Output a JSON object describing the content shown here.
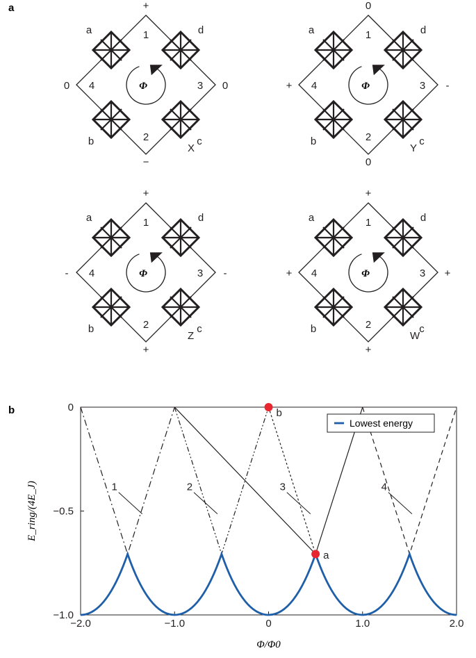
{
  "panel_a": {
    "label": "a",
    "flux_symbol": "Φ",
    "diagrams": [
      {
        "name": "X",
        "top": "+",
        "bottom": "−",
        "left": "0",
        "right": "0",
        "junctions": [
          "a",
          "b",
          "c",
          "d"
        ],
        "islands": [
          "1",
          "2",
          "3",
          "4"
        ]
      },
      {
        "name": "Y",
        "top": "0",
        "bottom": "0",
        "left": "+",
        "right": "-",
        "junctions": [
          "a",
          "b",
          "c",
          "d"
        ],
        "islands": [
          "1",
          "2",
          "3",
          "4"
        ]
      },
      {
        "name": "Z",
        "top": "+",
        "bottom": "+",
        "left": "-",
        "right": "-",
        "junctions": [
          "a",
          "b",
          "c",
          "d"
        ],
        "islands": [
          "1",
          "2",
          "3",
          "4"
        ]
      },
      {
        "name": "W",
        "top": "+",
        "bottom": "+",
        "left": "+",
        "right": "+",
        "junctions": [
          "a",
          "b",
          "c",
          "d"
        ],
        "islands": [
          "1",
          "2",
          "3",
          "4"
        ]
      }
    ]
  },
  "panel_b": {
    "label": "b",
    "chart_data": {
      "type": "line",
      "xlabel": "Φ/Φ0",
      "ylabel": "E_ring/(4E_J)",
      "xlim": [
        -2.0,
        2.0
      ],
      "ylim": [
        -1.0,
        0
      ],
      "xticks": [
        "−2.0",
        "−1.0",
        "0",
        "1.0",
        "2.0"
      ],
      "yticks": [
        "0",
        "−0.5",
        "−1.0"
      ],
      "legend": {
        "position": "top-right",
        "entries": [
          "Lowest energy"
        ]
      },
      "series": [
        {
          "name": "1",
          "style": "dash-dot",
          "points": [
            [
              -2.0,
              0.0
            ],
            [
              -1.5,
              -0.707
            ],
            [
              -1.0,
              0.0
            ]
          ]
        },
        {
          "name": "2",
          "style": "dash-dot-dot",
          "points": [
            [
              -1.0,
              0.0
            ],
            [
              -0.5,
              -0.707
            ],
            [
              0.0,
              0.0
            ]
          ]
        },
        {
          "name": "3",
          "style": "solid",
          "points": [
            [
              -1.0,
              0.0
            ],
            [
              0.5,
              -0.707
            ],
            [
              1.0,
              0.0
            ]
          ]
        },
        {
          "name": "",
          "style": "dotted",
          "points": [
            [
              0.0,
              0.0
            ],
            [
              0.5,
              -0.707
            ]
          ]
        },
        {
          "name": "4",
          "style": "dashed",
          "points": [
            [
              1.0,
              0.0
            ],
            [
              1.5,
              -0.707
            ],
            [
              2.0,
              0.0
            ]
          ]
        },
        {
          "name": "Lowest energy",
          "style": "solid-blue",
          "points": [
            [
              -2.0,
              -1.0
            ],
            [
              -1.0,
              -1.0
            ],
            [
              0.0,
              -1.0
            ],
            [
              1.0,
              -1.0
            ],
            [
              2.0,
              -1.0
            ]
          ],
          "peaks": [
            [
              -1.5,
              -0.707
            ],
            [
              -0.5,
              -0.707
            ],
            [
              0.5,
              -0.707
            ],
            [
              1.5,
              -0.707
            ]
          ]
        }
      ],
      "curve_labels": [
        {
          "text": "1",
          "x": -1.64,
          "y": -0.4
        },
        {
          "text": "2",
          "x": -0.84,
          "y": -0.4
        },
        {
          "text": "3",
          "x": 0.15,
          "y": -0.4
        },
        {
          "text": "4",
          "x": 1.23,
          "y": -0.4
        }
      ],
      "points": [
        {
          "label": "b",
          "x": 0.0,
          "y": 0.0
        },
        {
          "label": "a",
          "x": 0.5,
          "y": -0.707
        }
      ],
      "colors": {
        "lowest": "#1f5fa8",
        "marker": "#e8262f",
        "lines": "#231f20"
      }
    }
  }
}
